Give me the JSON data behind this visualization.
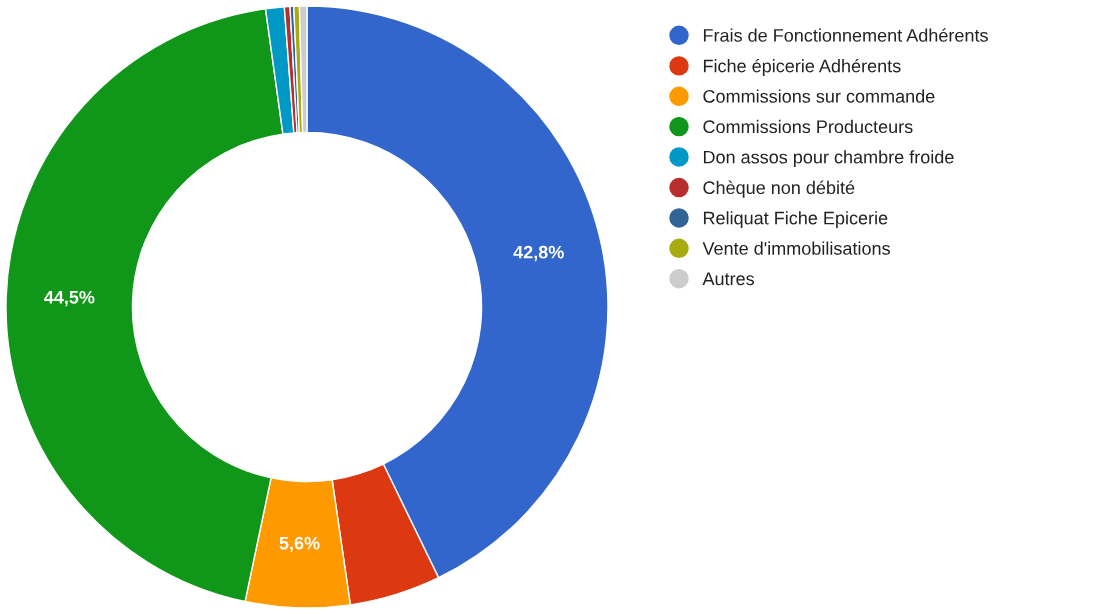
{
  "chart_data": {
    "type": "donut",
    "categories": [
      "Frais de Fonctionnement Adhérents",
      "Fiche épicerie Adhérents",
      "Commissions sur commande",
      "Commissions Producteurs",
      "Don assos pour chambre froide",
      "Chèque non débité",
      "Reliquat Fiche Epicerie",
      "Vente d'immobilisations",
      "Autres"
    ],
    "values": [
      42.8,
      4.9,
      5.6,
      44.5,
      1.0,
      0.3,
      0.2,
      0.3,
      0.4
    ],
    "colors": [
      "#3366cc",
      "#dc3912",
      "#ff9900",
      "#109618",
      "#0099c6",
      "#b82e2e",
      "#316395",
      "#aaaa11",
      "#cccccc"
    ],
    "value_labels": [
      "42,8%",
      null,
      "5,6%",
      "44,5%",
      null,
      null,
      null,
      null,
      null
    ],
    "legend": "right"
  }
}
